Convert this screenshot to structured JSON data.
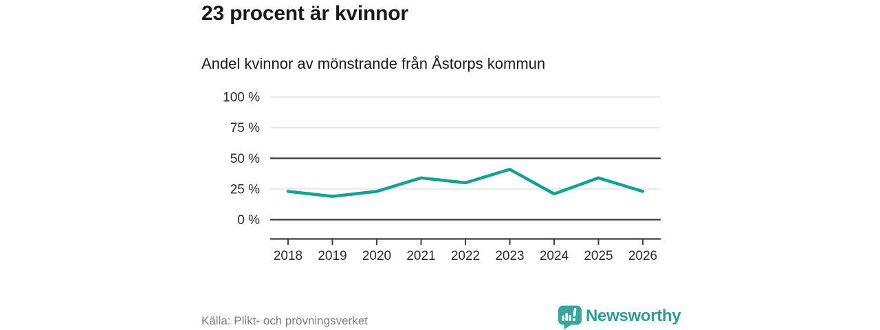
{
  "header": {
    "title": "23 procent är kvinnor",
    "subtitle": "Andel kvinnor av mönstrande från Åstorps kommun"
  },
  "chart_data": {
    "type": "line",
    "title": "Andel kvinnor av mönstrande från Åstorps kommun",
    "categories": [
      "2018",
      "2019",
      "2020",
      "2021",
      "2022",
      "2023",
      "2024",
      "2025",
      "2026"
    ],
    "series": [
      {
        "name": "Andel kvinnor",
        "values": [
          23,
          19,
          23,
          34,
          30,
          41,
          21,
          34,
          23
        ]
      }
    ],
    "xlabel": "",
    "ylabel": "",
    "ylim": [
      0,
      100
    ],
    "yticks": [
      0,
      25,
      50,
      75,
      100
    ],
    "ytick_labels": [
      "0 %",
      "25 %",
      "50 %",
      "75 %",
      "100 %"
    ],
    "emphasized_yticks": [
      0,
      50
    ],
    "grid": true,
    "legend_position": "none",
    "line_color": "#14a192"
  },
  "footer": {
    "source": "Källa: Plikt- och prövningsverket",
    "brand": "Newsworthy"
  },
  "icons": {
    "brand_icon": "bar-chart-speech-bubble"
  },
  "colors": {
    "accent_teal": "#14a192",
    "logo_teal": "#3ca49e",
    "wordmark_teal": "#2f9b94",
    "grid_light": "#e3e3e3",
    "grid_dark": "#3d3d3d",
    "title_text": "#191919",
    "axis_text": "#2b2b2b",
    "source_text": "#7d7d7d",
    "background": "#ffffff"
  }
}
